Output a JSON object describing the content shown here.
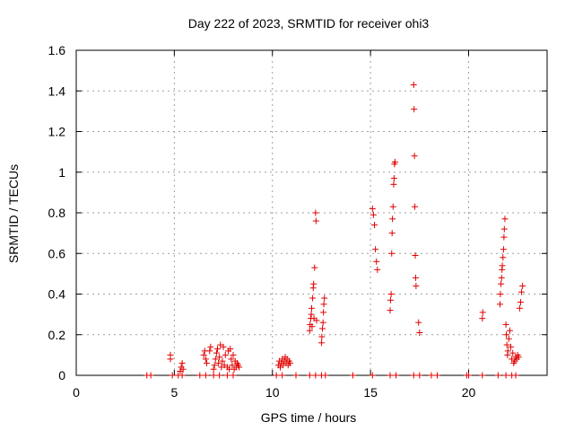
{
  "chart_data": {
    "type": "scatter",
    "title": "Day 222 of 2023, SRMTID for receiver ohi3",
    "xlabel": "GPS time / hours",
    "ylabel": "SRMTID / TECUs",
    "xlim": [
      0,
      24
    ],
    "ylim": [
      0,
      1.6
    ],
    "x_ticks": [
      0,
      5,
      10,
      15,
      20
    ],
    "x_tick_labels": [
      "0",
      "5",
      "10",
      "15",
      "20"
    ],
    "y_ticks": [
      0,
      0.2,
      0.4,
      0.6,
      0.8,
      1.0,
      1.2,
      1.4,
      1.6
    ],
    "y_tick_labels": [
      "0",
      "0.2",
      "0.4",
      "0.6",
      "0.8",
      "1",
      "1.2",
      "1.4",
      "1.6"
    ],
    "grid": true,
    "marker": "+",
    "color": "#e00000",
    "series": [
      {
        "name": "SRMTID",
        "points": [
          [
            3.6,
            0
          ],
          [
            3.8,
            0
          ],
          [
            4.9,
            0
          ],
          [
            5.2,
            0
          ],
          [
            5.4,
            0
          ],
          [
            6.3,
            0
          ],
          [
            6.6,
            0
          ],
          [
            7.0,
            0
          ],
          [
            7.3,
            0
          ],
          [
            7.7,
            0
          ],
          [
            8.0,
            0
          ],
          [
            10.2,
            0
          ],
          [
            10.5,
            0
          ],
          [
            11.2,
            0
          ],
          [
            11.9,
            0
          ],
          [
            12.2,
            0
          ],
          [
            12.5,
            0
          ],
          [
            12.7,
            0
          ],
          [
            14.1,
            0
          ],
          [
            15.1,
            0
          ],
          [
            16.0,
            0
          ],
          [
            16.3,
            0
          ],
          [
            17.2,
            0
          ],
          [
            17.5,
            0
          ],
          [
            18.1,
            0
          ],
          [
            18.4,
            0
          ],
          [
            19.9,
            0
          ],
          [
            20.0,
            0
          ],
          [
            20.7,
            0
          ],
          [
            21.5,
            0
          ],
          [
            21.9,
            0
          ],
          [
            22.2,
            0
          ],
          [
            22.4,
            0
          ],
          [
            4.8,
            0.08
          ],
          [
            4.8,
            0.1
          ],
          [
            5.3,
            0.02
          ],
          [
            5.35,
            0.04
          ],
          [
            5.4,
            0.06
          ],
          [
            5.45,
            0.03
          ],
          [
            6.5,
            0.1
          ],
          [
            6.55,
            0.12
          ],
          [
            6.6,
            0.08
          ],
          [
            6.65,
            0.06
          ],
          [
            6.8,
            0.12
          ],
          [
            6.85,
            0.14
          ],
          [
            7.0,
            0.03
          ],
          [
            7.05,
            0.05
          ],
          [
            7.1,
            0.08
          ],
          [
            7.15,
            0.11
          ],
          [
            7.2,
            0.13
          ],
          [
            7.25,
            0.06
          ],
          [
            7.3,
            0.09
          ],
          [
            7.35,
            0.15
          ],
          [
            7.4,
            0.04
          ],
          [
            7.45,
            0.07
          ],
          [
            7.5,
            0.14
          ],
          [
            7.55,
            0.05
          ],
          [
            7.6,
            0.1
          ],
          [
            7.7,
            0.04
          ],
          [
            7.75,
            0.12
          ],
          [
            7.8,
            0.03
          ],
          [
            7.85,
            0.13
          ],
          [
            7.9,
            0.08
          ],
          [
            7.95,
            0.05
          ],
          [
            8.0,
            0.1
          ],
          [
            8.05,
            0.03
          ],
          [
            8.1,
            0.07
          ],
          [
            8.15,
            0.04
          ],
          [
            8.2,
            0.06
          ],
          [
            8.25,
            0.05
          ],
          [
            8.3,
            0.04
          ],
          [
            10.3,
            0.05
          ],
          [
            10.35,
            0.07
          ],
          [
            10.4,
            0.04
          ],
          [
            10.45,
            0.06
          ],
          [
            10.5,
            0.08
          ],
          [
            10.55,
            0.05
          ],
          [
            10.6,
            0.07
          ],
          [
            10.65,
            0.09
          ],
          [
            10.7,
            0.06
          ],
          [
            10.75,
            0.08
          ],
          [
            10.8,
            0.05
          ],
          [
            10.85,
            0.07
          ],
          [
            10.9,
            0.06
          ],
          [
            11.9,
            0.22
          ],
          [
            11.92,
            0.25
          ],
          [
            11.95,
            0.28
          ],
          [
            11.98,
            0.3
          ],
          [
            12.0,
            0.33
          ],
          [
            12.02,
            0.24
          ],
          [
            12.05,
            0.38
          ],
          [
            12.08,
            0.43
          ],
          [
            12.1,
            0.45
          ],
          [
            12.12,
            0.28
          ],
          [
            12.15,
            0.53
          ],
          [
            12.2,
            0.8
          ],
          [
            12.22,
            0.76
          ],
          [
            12.25,
            0.27
          ],
          [
            12.5,
            0.16
          ],
          [
            12.52,
            0.19
          ],
          [
            12.55,
            0.23
          ],
          [
            12.58,
            0.26
          ],
          [
            12.6,
            0.31
          ],
          [
            12.62,
            0.35
          ],
          [
            12.65,
            0.38
          ],
          [
            15.1,
            0.82
          ],
          [
            15.15,
            0.79
          ],
          [
            15.2,
            0.74
          ],
          [
            15.25,
            0.62
          ],
          [
            15.3,
            0.56
          ],
          [
            15.35,
            0.52
          ],
          [
            16.0,
            0.32
          ],
          [
            16.02,
            0.37
          ],
          [
            16.05,
            0.4
          ],
          [
            16.08,
            0.6
          ],
          [
            16.1,
            0.7
          ],
          [
            16.12,
            0.77
          ],
          [
            16.15,
            0.83
          ],
          [
            16.18,
            0.94
          ],
          [
            16.2,
            0.97
          ],
          [
            16.22,
            1.04
          ],
          [
            16.25,
            1.05
          ],
          [
            17.2,
            1.43
          ],
          [
            17.22,
            1.31
          ],
          [
            17.24,
            1.08
          ],
          [
            17.26,
            0.83
          ],
          [
            17.28,
            0.59
          ],
          [
            17.3,
            0.48
          ],
          [
            17.32,
            0.44
          ],
          [
            17.45,
            0.26
          ],
          [
            17.5,
            0.21
          ],
          [
            20.7,
            0.28
          ],
          [
            20.72,
            0.31
          ],
          [
            21.6,
            0.35
          ],
          [
            21.62,
            0.4
          ],
          [
            21.65,
            0.45
          ],
          [
            21.68,
            0.48
          ],
          [
            21.7,
            0.52
          ],
          [
            21.72,
            0.54
          ],
          [
            21.75,
            0.58
          ],
          [
            21.78,
            0.62
          ],
          [
            21.8,
            0.68
          ],
          [
            21.82,
            0.72
          ],
          [
            21.85,
            0.77
          ],
          [
            21.9,
            0.25
          ],
          [
            21.92,
            0.2
          ],
          [
            21.95,
            0.15
          ],
          [
            21.98,
            0.1
          ],
          [
            22.0,
            0.12
          ],
          [
            22.05,
            0.18
          ],
          [
            22.1,
            0.22
          ],
          [
            22.15,
            0.14
          ],
          [
            22.2,
            0.08
          ],
          [
            22.25,
            0.11
          ],
          [
            22.3,
            0.06
          ],
          [
            22.35,
            0.07
          ],
          [
            22.4,
            0.09
          ],
          [
            22.45,
            0.08
          ],
          [
            22.5,
            0.1
          ],
          [
            22.55,
            0.09
          ],
          [
            22.6,
            0.33
          ],
          [
            22.65,
            0.36
          ],
          [
            22.7,
            0.41
          ],
          [
            22.75,
            0.44
          ]
        ]
      }
    ]
  }
}
